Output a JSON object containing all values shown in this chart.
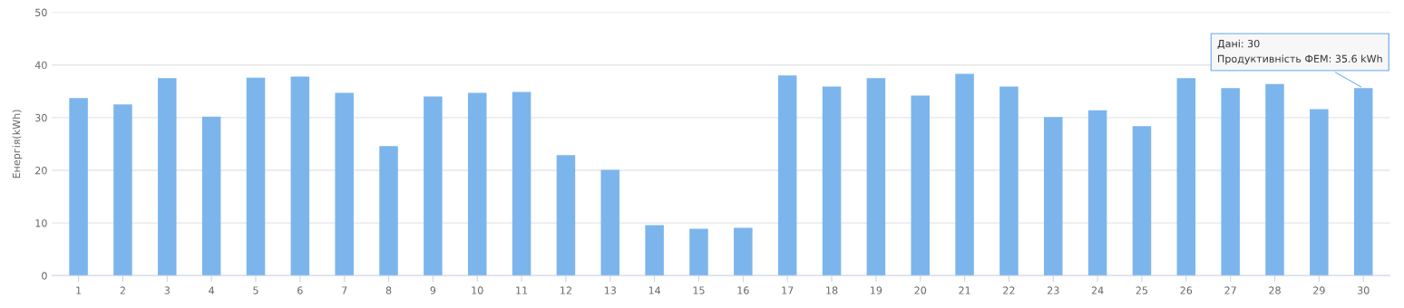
{
  "chart_data": {
    "type": "bar",
    "ylabel": "Енергія(kWh)",
    "categories": [
      "1",
      "2",
      "3",
      "4",
      "5",
      "6",
      "7",
      "8",
      "9",
      "10",
      "11",
      "12",
      "13",
      "14",
      "15",
      "16",
      "17",
      "18",
      "19",
      "20",
      "21",
      "22",
      "23",
      "24",
      "25",
      "26",
      "27",
      "28",
      "29",
      "30"
    ],
    "values": [
      33.7,
      32.5,
      37.5,
      30.2,
      37.6,
      37.8,
      34.7,
      24.6,
      34.0,
      34.7,
      34.9,
      22.9,
      20.1,
      9.6,
      8.9,
      9.1,
      38.0,
      35.9,
      37.5,
      34.2,
      38.3,
      35.9,
      30.1,
      31.4,
      28.4,
      37.5,
      35.6,
      36.4,
      31.6,
      35.6
    ],
    "color": "#7cb5ec",
    "ylim": [
      0,
      50
    ],
    "yticks": [
      0,
      10,
      20,
      30,
      40,
      50
    ],
    "grid": "y",
    "annotations": [
      {
        "text": "Дані: 30\nПродуктивність ФЕМ: 35.6 kWh",
        "x": "30",
        "y": 35.6
      }
    ]
  }
}
